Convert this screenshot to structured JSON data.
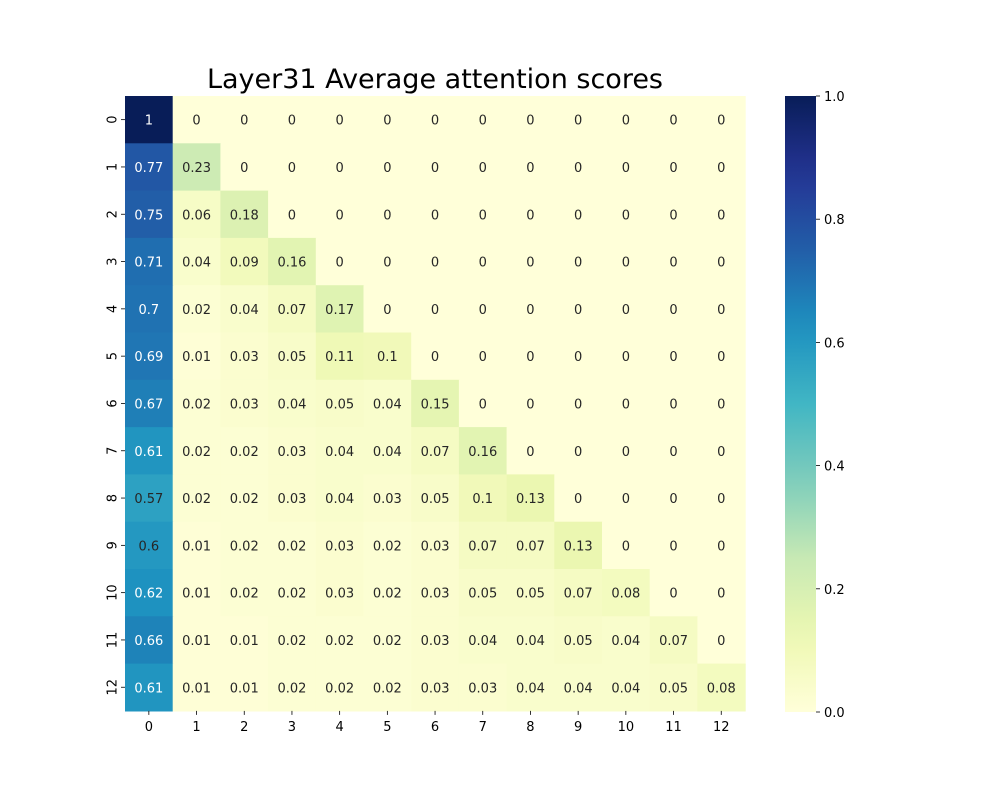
{
  "chart_data": {
    "type": "heatmap",
    "title": "Layer31 Average attention scores",
    "xlabel": "",
    "ylabel": "",
    "x_categories": [
      "0",
      "1",
      "2",
      "3",
      "4",
      "5",
      "6",
      "7",
      "8",
      "9",
      "10",
      "11",
      "12"
    ],
    "y_categories": [
      "0",
      "1",
      "2",
      "3",
      "4",
      "5",
      "6",
      "7",
      "8",
      "9",
      "10",
      "11",
      "12"
    ],
    "values": [
      [
        1,
        0,
        0,
        0,
        0,
        0,
        0,
        0,
        0,
        0,
        0,
        0,
        0
      ],
      [
        0.77,
        0.23,
        0,
        0,
        0,
        0,
        0,
        0,
        0,
        0,
        0,
        0,
        0
      ],
      [
        0.75,
        0.06,
        0.18,
        0,
        0,
        0,
        0,
        0,
        0,
        0,
        0,
        0,
        0
      ],
      [
        0.71,
        0.04,
        0.09,
        0.16,
        0,
        0,
        0,
        0,
        0,
        0,
        0,
        0,
        0
      ],
      [
        0.7,
        0.02,
        0.04,
        0.07,
        0.17,
        0,
        0,
        0,
        0,
        0,
        0,
        0,
        0
      ],
      [
        0.69,
        0.01,
        0.03,
        0.05,
        0.11,
        0.1,
        0,
        0,
        0,
        0,
        0,
        0,
        0
      ],
      [
        0.67,
        0.02,
        0.03,
        0.04,
        0.05,
        0.04,
        0.15,
        0,
        0,
        0,
        0,
        0,
        0
      ],
      [
        0.61,
        0.02,
        0.02,
        0.03,
        0.04,
        0.04,
        0.07,
        0.16,
        0,
        0,
        0,
        0,
        0
      ],
      [
        0.57,
        0.02,
        0.02,
        0.03,
        0.04,
        0.03,
        0.05,
        0.1,
        0.13,
        0,
        0,
        0,
        0
      ],
      [
        0.6,
        0.01,
        0.02,
        0.02,
        0.03,
        0.02,
        0.03,
        0.07,
        0.07,
        0.13,
        0,
        0,
        0
      ],
      [
        0.62,
        0.01,
        0.02,
        0.02,
        0.03,
        0.02,
        0.03,
        0.05,
        0.05,
        0.07,
        0.08,
        0,
        0
      ],
      [
        0.66,
        0.01,
        0.01,
        0.02,
        0.02,
        0.02,
        0.03,
        0.04,
        0.04,
        0.05,
        0.04,
        0.07,
        0
      ],
      [
        0.61,
        0.01,
        0.01,
        0.02,
        0.02,
        0.02,
        0.03,
        0.03,
        0.04,
        0.04,
        0.04,
        0.05,
        0.08
      ]
    ],
    "colormap": "YlGnBu",
    "value_range": [
      0,
      1
    ],
    "colorbar_ticks": [
      "0.0",
      "0.2",
      "0.4",
      "0.6",
      "0.8",
      "1.0"
    ],
    "colorbar_tick_values": [
      0,
      0.2,
      0.4,
      0.6,
      0.8,
      1.0
    ],
    "annotations": true,
    "grid": false,
    "legend": "colorbar-right"
  }
}
